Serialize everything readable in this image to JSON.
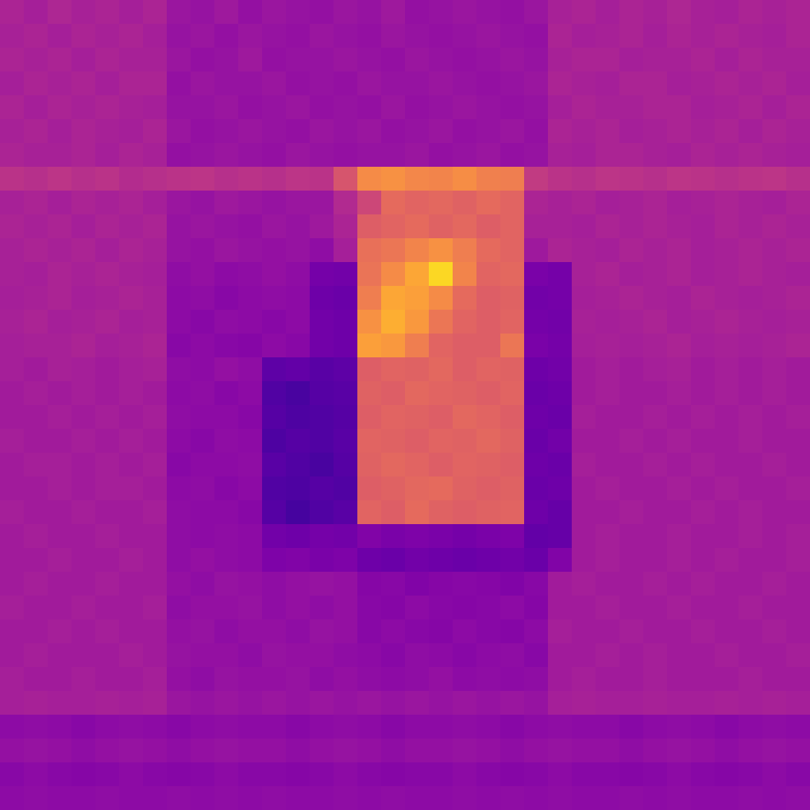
{
  "chart_data": {
    "type": "heatmap",
    "zlim": [
      0,
      100
    ],
    "tick_labels": false,
    "values": [
      [
        38,
        36,
        39,
        37,
        38,
        36,
        38,
        33,
        32,
        34,
        31,
        33,
        32,
        31,
        33,
        32,
        34,
        31,
        32,
        33,
        32,
        31,
        33,
        37,
        38,
        36,
        38,
        37,
        39,
        37,
        36,
        38,
        37,
        38
      ],
      [
        37,
        38,
        36,
        38,
        37,
        38,
        36,
        32,
        33,
        31,
        33,
        32,
        31,
        33,
        32,
        31,
        33,
        32,
        31,
        32,
        33,
        32,
        31,
        38,
        36,
        37,
        38,
        36,
        38,
        37,
        38,
        37,
        36,
        38
      ],
      [
        38,
        37,
        38,
        36,
        38,
        37,
        37,
        33,
        31,
        32,
        34,
        31,
        32,
        32,
        33,
        32,
        31,
        33,
        32,
        31,
        32,
        33,
        32,
        37,
        38,
        38,
        36,
        37,
        37,
        38,
        36,
        38,
        37,
        37
      ],
      [
        36,
        38,
        37,
        38,
        36,
        38,
        38,
        31,
        33,
        32,
        32,
        33,
        31,
        32,
        31,
        33,
        32,
        32,
        33,
        32,
        31,
        32,
        33,
        38,
        37,
        36,
        38,
        38,
        36,
        37,
        38,
        37,
        38,
        36
      ],
      [
        38,
        36,
        38,
        37,
        38,
        37,
        36,
        32,
        32,
        33,
        31,
        32,
        33,
        31,
        32,
        31,
        33,
        31,
        32,
        33,
        32,
        31,
        32,
        36,
        38,
        37,
        37,
        38,
        38,
        36,
        37,
        38,
        36,
        38
      ],
      [
        37,
        38,
        36,
        38,
        37,
        36,
        38,
        33,
        31,
        32,
        33,
        32,
        31,
        33,
        32,
        33,
        31,
        32,
        33,
        31,
        32,
        33,
        31,
        38,
        37,
        38,
        36,
        37,
        38,
        37,
        38,
        36,
        38,
        37
      ],
      [
        38,
        37,
        37,
        38,
        36,
        38,
        37,
        31,
        32,
        33,
        32,
        31,
        33,
        32,
        31,
        32,
        32,
        33,
        31,
        32,
        33,
        31,
        32,
        37,
        36,
        38,
        38,
        37,
        36,
        38,
        37,
        38,
        37,
        36
      ],
      [
        43,
        42,
        44,
        42,
        43,
        41,
        42,
        43,
        44,
        42,
        43,
        42,
        44,
        43,
        55,
        72,
        74,
        71,
        70,
        73,
        69,
        68,
        46,
        43,
        42,
        44,
        43,
        42,
        44,
        43,
        42,
        43,
        44,
        42
      ],
      [
        37,
        38,
        36,
        38,
        37,
        38,
        36,
        33,
        32,
        34,
        33,
        32,
        33,
        33,
        40,
        50,
        62,
        60,
        61,
        59,
        62,
        60,
        38,
        37,
        38,
        36,
        37,
        38,
        36,
        37,
        38,
        37,
        36,
        38
      ],
      [
        38,
        37,
        38,
        36,
        38,
        37,
        38,
        32,
        33,
        32,
        31,
        33,
        32,
        34,
        38,
        58,
        60,
        62,
        59,
        61,
        58,
        60,
        37,
        37,
        36,
        38,
        37,
        38,
        37,
        36,
        38,
        37,
        38,
        37
      ],
      [
        37,
        38,
        37,
        38,
        36,
        38,
        37,
        32,
        31,
        33,
        32,
        31,
        32,
        30,
        36,
        64,
        66,
        70,
        74,
        68,
        62,
        60,
        34,
        38,
        37,
        36,
        38,
        37,
        38,
        36,
        37,
        38,
        37,
        38
      ],
      [
        37,
        36,
        38,
        37,
        38,
        37,
        36,
        30,
        31,
        29,
        30,
        31,
        30,
        23,
        22,
        65,
        72,
        80,
        92,
        70,
        60,
        61,
        24,
        23,
        37,
        38,
        36,
        37,
        38,
        36,
        37,
        38,
        37,
        36
      ],
      [
        36,
        37,
        38,
        36,
        37,
        38,
        37,
        29,
        30,
        28,
        29,
        30,
        29,
        21,
        20,
        68,
        80,
        78,
        72,
        62,
        58,
        59,
        22,
        23,
        36,
        37,
        38,
        37,
        36,
        38,
        37,
        36,
        37,
        38
      ],
      [
        37,
        38,
        36,
        37,
        38,
        36,
        37,
        29,
        28,
        30,
        29,
        28,
        29,
        22,
        21,
        74,
        82,
        76,
        66,
        60,
        58,
        60,
        23,
        22,
        37,
        36,
        37,
        38,
        36,
        37,
        38,
        37,
        36,
        37
      ],
      [
        36,
        37,
        37,
        38,
        36,
        37,
        38,
        28,
        29,
        28,
        27,
        29,
        28,
        22,
        21,
        78,
        76,
        68,
        60,
        58,
        58,
        66,
        24,
        23,
        36,
        37,
        36,
        37,
        38,
        36,
        37,
        36,
        37,
        38
      ],
      [
        36,
        35,
        37,
        36,
        35,
        36,
        37,
        30,
        29,
        31,
        30,
        17,
        18,
        16,
        17,
        58,
        60,
        59,
        61,
        58,
        60,
        59,
        21,
        22,
        35,
        36,
        35,
        36,
        37,
        35,
        36,
        35,
        36,
        35
      ],
      [
        35,
        36,
        35,
        36,
        35,
        36,
        35,
        29,
        30,
        28,
        29,
        14,
        12,
        15,
        16,
        59,
        58,
        61,
        60,
        59,
        58,
        60,
        20,
        21,
        35,
        36,
        35,
        35,
        36,
        35,
        36,
        35,
        36,
        35
      ],
      [
        35,
        35,
        36,
        35,
        36,
        35,
        36,
        30,
        29,
        29,
        28,
        15,
        13,
        14,
        15,
        58,
        60,
        59,
        58,
        61,
        60,
        58,
        21,
        20,
        36,
        35,
        35,
        36,
        35,
        36,
        35,
        36,
        35,
        36
      ],
      [
        36,
        35,
        35,
        36,
        35,
        36,
        35,
        29,
        28,
        30,
        29,
        13,
        15,
        14,
        16,
        60,
        59,
        58,
        60,
        59,
        61,
        59,
        20,
        22,
        35,
        35,
        36,
        35,
        36,
        35,
        35,
        36,
        35,
        35
      ],
      [
        35,
        36,
        36,
        35,
        36,
        35,
        36,
        28,
        29,
        29,
        30,
        16,
        14,
        12,
        15,
        59,
        61,
        60,
        58,
        60,
        59,
        58,
        21,
        20,
        36,
        35,
        35,
        36,
        35,
        36,
        35,
        35,
        36,
        35
      ],
      [
        35,
        35,
        36,
        35,
        36,
        36,
        35,
        29,
        30,
        28,
        29,
        14,
        13,
        15,
        14,
        58,
        59,
        61,
        62,
        59,
        58,
        59,
        20,
        21,
        35,
        36,
        35,
        35,
        36,
        35,
        36,
        35,
        35,
        36
      ],
      [
        36,
        35,
        35,
        36,
        35,
        35,
        36,
        30,
        29,
        29,
        28,
        15,
        11,
        14,
        16,
        60,
        58,
        62,
        59,
        58,
        59,
        60,
        21,
        19,
        35,
        35,
        36,
        35,
        35,
        36,
        35,
        36,
        35,
        35
      ],
      [
        35,
        36,
        35,
        35,
        36,
        35,
        35,
        30,
        29,
        30,
        29,
        22,
        21,
        23,
        22,
        26,
        24,
        25,
        24,
        23,
        24,
        25,
        18,
        19,
        35,
        36,
        35,
        35,
        36,
        35,
        35,
        36,
        35,
        36
      ],
      [
        35,
        35,
        36,
        35,
        35,
        36,
        35,
        30,
        31,
        30,
        29,
        25,
        26,
        24,
        25,
        21,
        20,
        22,
        21,
        20,
        21,
        22,
        20,
        26,
        35,
        36,
        35,
        35,
        36,
        35,
        36,
        35,
        35,
        36
      ],
      [
        35,
        36,
        35,
        35,
        36,
        35,
        35,
        31,
        30,
        32,
        31,
        30,
        31,
        32,
        31,
        27,
        28,
        26,
        27,
        28,
        27,
        26,
        28,
        35,
        36,
        35,
        35,
        36,
        35,
        36,
        35,
        35,
        36,
        35
      ],
      [
        36,
        35,
        35,
        36,
        35,
        35,
        36,
        30,
        31,
        31,
        32,
        30,
        31,
        30,
        31,
        28,
        27,
        29,
        28,
        27,
        28,
        29,
        27,
        35,
        35,
        36,
        35,
        35,
        36,
        35,
        35,
        36,
        35,
        35
      ],
      [
        35,
        35,
        36,
        35,
        36,
        35,
        35,
        31,
        32,
        30,
        31,
        31,
        30,
        32,
        31,
        28,
        29,
        28,
        27,
        29,
        28,
        27,
        29,
        36,
        35,
        35,
        36,
        35,
        35,
        36,
        35,
        35,
        36,
        35
      ],
      [
        35,
        36,
        35,
        35,
        35,
        36,
        35,
        32,
        31,
        31,
        30,
        32,
        31,
        31,
        30,
        29,
        28,
        30,
        29,
        28,
        29,
        30,
        28,
        35,
        35,
        36,
        35,
        36,
        35,
        35,
        36,
        35,
        35,
        36
      ],
      [
        36,
        35,
        35,
        36,
        35,
        35,
        36,
        31,
        30,
        32,
        31,
        31,
        32,
        30,
        31,
        30,
        29,
        30,
        31,
        29,
        30,
        29,
        30,
        35,
        36,
        35,
        35,
        36,
        35,
        35,
        35,
        36,
        35,
        35
      ],
      [
        36,
        37,
        36,
        36,
        37,
        36,
        37,
        33,
        32,
        33,
        32,
        33,
        32,
        33,
        32,
        33,
        32,
        33,
        32,
        33,
        32,
        33,
        32,
        36,
        37,
        36,
        36,
        37,
        36,
        36,
        37,
        36,
        37,
        36
      ],
      [
        29,
        30,
        29,
        28,
        29,
        30,
        29,
        28,
        29,
        30,
        29,
        29,
        28,
        29,
        30,
        29,
        28,
        29,
        29,
        30,
        29,
        28,
        29,
        30,
        29,
        29,
        28,
        29,
        30,
        29,
        28,
        29,
        30,
        29
      ],
      [
        31,
        32,
        31,
        30,
        31,
        32,
        31,
        30,
        31,
        32,
        31,
        31,
        30,
        31,
        32,
        31,
        30,
        31,
        31,
        32,
        31,
        30,
        31,
        32,
        31,
        31,
        30,
        31,
        32,
        31,
        30,
        31,
        32,
        31
      ],
      [
        28,
        29,
        28,
        27,
        28,
        29,
        28,
        27,
        28,
        29,
        28,
        28,
        27,
        28,
        29,
        28,
        27,
        28,
        28,
        29,
        28,
        27,
        28,
        29,
        28,
        28,
        27,
        28,
        29,
        28,
        27,
        28,
        29,
        28
      ],
      [
        29,
        30,
        29,
        29,
        30,
        29,
        29,
        30,
        29,
        30,
        29,
        30,
        29,
        29,
        30,
        29,
        30,
        29,
        29,
        30,
        29,
        30,
        29,
        30,
        29,
        29,
        30,
        29,
        30,
        29,
        29,
        30,
        29,
        30
      ]
    ]
  }
}
